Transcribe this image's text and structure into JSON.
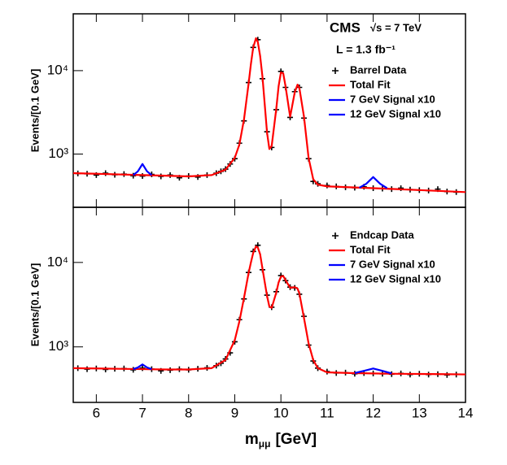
{
  "chart_data": [
    {
      "type": "line",
      "ylabel": "Events/[0.1 GeV]",
      "ylog": true,
      "legend": "upper right",
      "xlim": [
        5.5,
        14
      ],
      "xticks": [
        6,
        7,
        8,
        9,
        10,
        11,
        12,
        13,
        14
      ],
      "xtick_labels": false,
      "ylim": [
        230,
        48000
      ],
      "yticks": [
        {
          "value": 1000,
          "label": "10³"
        },
        {
          "value": 10000,
          "label": "10⁴"
        }
      ],
      "annotations": [
        "CMS",
        "√s = 7 TeV",
        "L = 1.3 fb⁻¹"
      ],
      "series": [
        {
          "name": "Barrel Data",
          "color": "#000000",
          "marker": "cross",
          "x": [
            5.6,
            5.8,
            6.0,
            6.2,
            6.4,
            6.6,
            6.8,
            7.0,
            7.2,
            7.4,
            7.6,
            7.8,
            8.0,
            8.2,
            8.4,
            8.6,
            8.7,
            8.8,
            8.9,
            9.0,
            9.1,
            9.2,
            9.3,
            9.4,
            9.5,
            9.6,
            9.7,
            9.8,
            9.9,
            10.0,
            10.1,
            10.2,
            10.3,
            10.4,
            10.5,
            10.6,
            10.7,
            10.8,
            11.0,
            11.2,
            11.4,
            11.6,
            11.8,
            12.0,
            12.2,
            12.4,
            12.6,
            12.8,
            13.0,
            13.2,
            13.4,
            13.6,
            13.8
          ],
          "values": [
            585,
            580,
            560,
            590,
            565,
            575,
            550,
            545,
            570,
            540,
            560,
            520,
            545,
            530,
            560,
            590,
            620,
            660,
            760,
            880,
            1350,
            2500,
            7200,
            19000,
            23500,
            8000,
            1850,
            1200,
            3400,
            9800,
            6300,
            2750,
            5600,
            6300,
            2700,
            880,
            470,
            440,
            420,
            410,
            400,
            395,
            405,
            390,
            385,
            380,
            390,
            375,
            370,
            365,
            380,
            355,
            350
          ]
        },
        {
          "name": "Total Fit",
          "color": "#ff0000",
          "marker": "line",
          "x": [
            5.5,
            6,
            6.5,
            7,
            7.5,
            8,
            8.5,
            8.8,
            9.0,
            9.1,
            9.2,
            9.3,
            9.35,
            9.4,
            9.46,
            9.5,
            9.55,
            9.6,
            9.7,
            9.75,
            9.8,
            9.9,
            9.95,
            10.0,
            10.05,
            10.1,
            10.2,
            10.3,
            10.36,
            10.4,
            10.5,
            10.6,
            10.7,
            10.8,
            11,
            11.5,
            12,
            12.5,
            13,
            13.5,
            14
          ],
          "values": [
            590,
            580,
            570,
            560,
            550,
            540,
            560,
            650,
            900,
            1300,
            2600,
            7000,
            12000,
            19000,
            24500,
            22000,
            15000,
            8500,
            1800,
            1150,
            1250,
            3500,
            6500,
            9500,
            9300,
            6500,
            2800,
            5500,
            6800,
            6200,
            2800,
            900,
            500,
            430,
            410,
            400,
            390,
            380,
            370,
            360,
            350
          ]
        },
        {
          "name": "7 GeV Signal x10",
          "color": "#0000ff",
          "marker": "line",
          "x": [
            6.8,
            6.9,
            7.0,
            7.1,
            7.2
          ],
          "values": [
            560,
            620,
            760,
            620,
            560
          ]
        },
        {
          "name": "12 GeV Signal x10",
          "color": "#0000ff",
          "marker": "line",
          "x": [
            11.7,
            11.85,
            12.0,
            12.15,
            12.3
          ],
          "values": [
            395,
            440,
            530,
            440,
            390
          ]
        }
      ]
    },
    {
      "type": "line",
      "ylabel": "Events/[0.1 GeV]",
      "ylog": true,
      "legend": "upper right",
      "xlim": [
        5.5,
        14
      ],
      "xticks": [
        6,
        7,
        8,
        9,
        10,
        11,
        12,
        13,
        14
      ],
      "xtick_labels": true,
      "xlabel_main": "m",
      "xlabel_sub": "μμ",
      "xlabel_unit": "[GeV]",
      "ylim": [
        220,
        45000
      ],
      "yticks": [
        {
          "value": 1000,
          "label": "10³"
        },
        {
          "value": 10000,
          "label": "10⁴"
        }
      ],
      "series": [
        {
          "name": "Endcap Data",
          "color": "#000000",
          "marker": "cross",
          "x": [
            5.6,
            5.8,
            6.0,
            6.2,
            6.4,
            6.6,
            6.8,
            7.0,
            7.2,
            7.4,
            7.6,
            7.8,
            8.0,
            8.2,
            8.4,
            8.6,
            8.7,
            8.8,
            8.9,
            9.0,
            9.1,
            9.2,
            9.3,
            9.4,
            9.5,
            9.6,
            9.7,
            9.8,
            9.9,
            10.0,
            10.1,
            10.2,
            10.3,
            10.4,
            10.5,
            10.6,
            10.7,
            10.8,
            11.0,
            11.2,
            11.4,
            11.6,
            11.8,
            12.0,
            12.2,
            12.4,
            12.6,
            12.8,
            13.0,
            13.2,
            13.4,
            13.6,
            13.8
          ],
          "values": [
            560,
            545,
            555,
            540,
            550,
            555,
            535,
            560,
            545,
            520,
            530,
            545,
            535,
            550,
            565,
            600,
            640,
            720,
            850,
            1150,
            2100,
            3700,
            7600,
            13500,
            16000,
            8200,
            4100,
            2950,
            4500,
            7000,
            6100,
            5100,
            5000,
            4200,
            2300,
            1050,
            680,
            560,
            510,
            490,
            495,
            480,
            490,
            485,
            480,
            475,
            485,
            470,
            480,
            470,
            475,
            465,
            470
          ]
        },
        {
          "name": "Total Fit",
          "color": "#ff0000",
          "marker": "line",
          "x": [
            5.5,
            6,
            6.5,
            7,
            7.5,
            8,
            8.5,
            8.8,
            9.0,
            9.1,
            9.2,
            9.3,
            9.35,
            9.4,
            9.46,
            9.5,
            9.55,
            9.6,
            9.7,
            9.75,
            9.8,
            9.9,
            9.95,
            10.0,
            10.05,
            10.1,
            10.2,
            10.3,
            10.36,
            10.4,
            10.5,
            10.6,
            10.7,
            10.8,
            11,
            11.5,
            12,
            12.5,
            13,
            13.5,
            14
          ],
          "values": [
            560,
            555,
            550,
            545,
            540,
            540,
            560,
            700,
            1200,
            2000,
            3800,
            7500,
            10000,
            13000,
            15500,
            15000,
            12500,
            8500,
            4000,
            3000,
            2900,
            4400,
            5800,
            6800,
            6900,
            6200,
            5000,
            5100,
            4900,
            4300,
            2200,
            1100,
            700,
            560,
            500,
            490,
            485,
            480,
            478,
            475,
            472
          ]
        },
        {
          "name": "7 GeV Signal x10",
          "color": "#0000ff",
          "marker": "line",
          "x": [
            6.8,
            6.9,
            7.0,
            7.1,
            7.2
          ],
          "values": [
            545,
            570,
            620,
            570,
            545
          ]
        },
        {
          "name": "12 GeV Signal x10",
          "color": "#0000ff",
          "marker": "line",
          "x": [
            11.6,
            11.8,
            12.0,
            12.2,
            12.4
          ],
          "values": [
            490,
            520,
            555,
            520,
            485
          ]
        }
      ]
    }
  ]
}
